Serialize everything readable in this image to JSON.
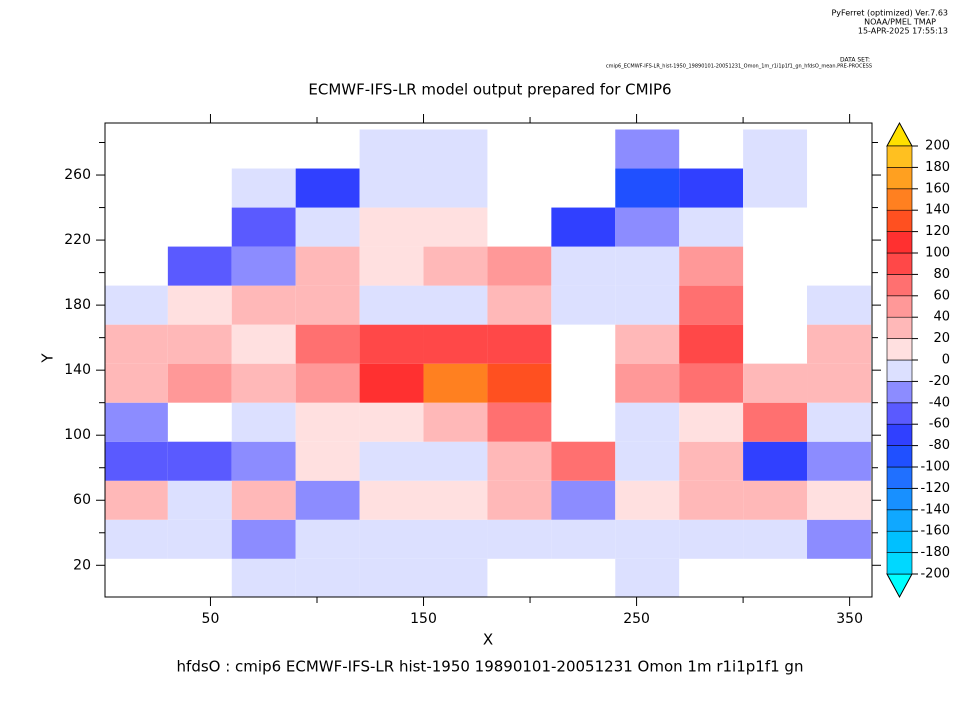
{
  "header": {
    "software": "PyFerret (optimized) Ver.7.63",
    "lab": "NOAA/PMEL TMAP",
    "timestamp": "15-APR-2025 17:55:13",
    "dataset_label": "DATA SET:",
    "dataset": "cmip6_ECMWF-IFS-LR_hist-1950_19890101-20051231_Omon_1m_r1i1p1f1_gn_hfdsO_mean.PRE-PROCESS"
  },
  "chart_data": {
    "type": "heatmap",
    "title": "ECMWF-IFS-LR model output prepared for CMIP6",
    "x_label": "X",
    "y_label": "Y",
    "footer": "hfdsO : cmip6 ECMWF-IFS-LR hist-1950 19890101-20051231 Omon 1m r1i1p1f1 gn",
    "xlim": [
      0.5,
      360.5
    ],
    "ylim": [
      0.5,
      292
    ],
    "xticks": [
      50,
      150,
      250,
      350
    ],
    "xminor": [
      100,
      200,
      300
    ],
    "yticks": [
      20,
      60,
      100,
      140,
      180,
      220,
      260
    ],
    "yminor": [
      40,
      80,
      120,
      160,
      200,
      240,
      280
    ],
    "x": [
      15,
      45,
      75,
      105,
      135,
      165,
      195,
      225,
      255,
      285,
      315,
      345
    ],
    "y": [
      12,
      36,
      60,
      84,
      108,
      132,
      156,
      180,
      204,
      228,
      252,
      276
    ],
    "z": [
      [
        null,
        null,
        -10,
        -10,
        -10,
        -10,
        null,
        null,
        -10,
        null,
        null,
        null
      ],
      [
        -20,
        -10,
        -30,
        -10,
        -20,
        -10,
        -10,
        -20,
        -10,
        -20,
        -20,
        -30
      ],
      [
        20,
        -20,
        30,
        -30,
        10,
        10,
        20,
        -30,
        10,
        30,
        20,
        10
      ],
      [
        -50,
        -60,
        -30,
        10,
        -10,
        -10,
        30,
        60,
        -20,
        30,
        -80,
        -30
      ],
      [
        -30,
        null,
        -20,
        10,
        10,
        20,
        60,
        null,
        -10,
        10,
        70,
        -20
      ],
      [
        20,
        40,
        20,
        50,
        110,
        150,
        130,
        null,
        40,
        60,
        30,
        20
      ],
      [
        30,
        20,
        10,
        60,
        90,
        90,
        80,
        null,
        30,
        80,
        null,
        20
      ],
      [
        -10,
        10,
        30,
        20,
        -10,
        -10,
        30,
        -10,
        -10,
        60,
        null,
        -10
      ],
      [
        null,
        -60,
        -40,
        30,
        10,
        20,
        40,
        -20,
        -10,
        40,
        null,
        null
      ],
      [
        null,
        null,
        -60,
        -20,
        10,
        10,
        null,
        -80,
        -40,
        -20,
        null,
        null
      ],
      [
        null,
        null,
        -20,
        -70,
        -10,
        -10,
        null,
        null,
        -90,
        -80,
        -10,
        null
      ],
      [
        null,
        null,
        null,
        null,
        -10,
        -10,
        null,
        null,
        -30,
        null,
        -10,
        null
      ]
    ],
    "levels": [
      -200,
      -180,
      -160,
      -140,
      -120,
      -100,
      -80,
      -60,
      -40,
      -20,
      0,
      20,
      40,
      60,
      80,
      100,
      120,
      140,
      160,
      180,
      200
    ],
    "colors": [
      "#00ffff",
      "#00d8ff",
      "#00c0ff",
      "#10a8ff",
      "#1890ff",
      "#2070ff",
      "#2050ff",
      "#3040ff",
      "#5a5aff",
      "#8c8cff",
      "#dce0ff",
      "#ffe0e0",
      "#ffb8b8",
      "#ff9898",
      "#ff7070",
      "#ff4848",
      "#ff3030",
      "#ff5020",
      "#ff8020",
      "#ffa020",
      "#ffc020",
      "#ffe000"
    ]
  }
}
